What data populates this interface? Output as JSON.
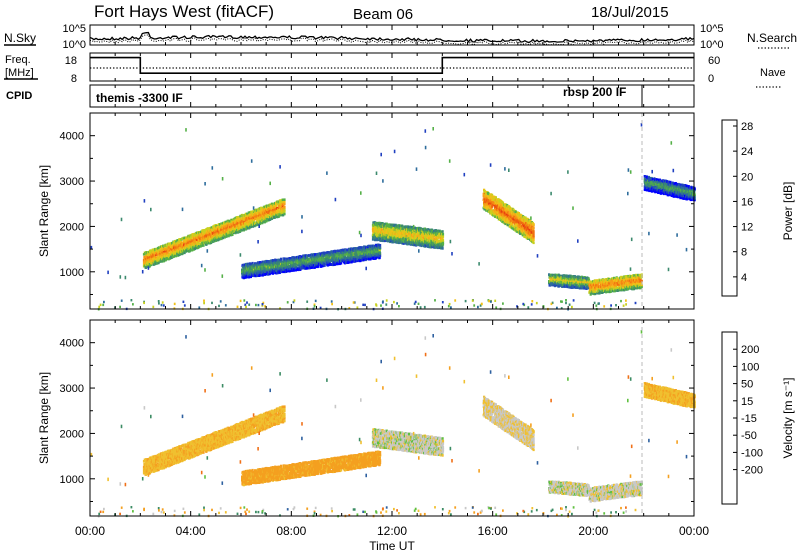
{
  "header": {
    "radar": "Fort Hays West (fitACF)",
    "beam": "Beam 06",
    "date": "18/Jul/2015"
  },
  "noise_panel": {
    "left_label": "N.Sky",
    "left_ticks": [
      "10^5",
      "10^0"
    ],
    "right_label": "N.Search",
    "right_ticks": [
      "10^5",
      "10^0"
    ]
  },
  "freq_panel": {
    "left_label_1": "Freq.",
    "left_label_2": "[MHz]",
    "left_ticks": [
      "18",
      "8"
    ],
    "right_label": "Nave",
    "right_ticks": [
      "60",
      "0"
    ],
    "freq_steps": [
      {
        "start_h": 0.0,
        "end_h": 2.0,
        "mhz": 17
      },
      {
        "start_h": 2.0,
        "end_h": 14.0,
        "mhz": 11
      },
      {
        "start_h": 14.0,
        "end_h": 22.0,
        "mhz": 17
      },
      {
        "start_h": 22.0,
        "end_h": 24.0,
        "mhz": 17
      }
    ],
    "nave": 30
  },
  "cpid": {
    "label": "CPID",
    "modes": [
      {
        "name": "themis -3300 IF",
        "start_h": 0.0
      },
      {
        "name": "rbsp 200 IF",
        "start_h": 22.0
      }
    ],
    "divider_h": 22.0
  },
  "time_axis": {
    "ticks": [
      "00:00",
      "04:00",
      "08:00",
      "12:00",
      "16:00",
      "20:00",
      "00:00"
    ],
    "label": "Time UT",
    "range_h": [
      0,
      24
    ]
  },
  "range_axis": {
    "label": "Slant Range [km]",
    "ticks": [
      "1000",
      "2000",
      "3000",
      "4000"
    ],
    "range_km": [
      180,
      4500
    ]
  },
  "power_colorbar": {
    "label": "Power [dB]",
    "ticks": [
      "4",
      "8",
      "12",
      "16",
      "20",
      "24",
      "28"
    ],
    "colors": [
      "#0000ff",
      "#2040c0",
      "#2e6d9c",
      "#3c8a6e",
      "#55b048",
      "#c8d020",
      "#f0c018",
      "#f89c18",
      "#f07010",
      "#e83c10",
      "#e01010"
    ]
  },
  "velocity_colorbar": {
    "label": "Velocity [m s⁻¹]",
    "ticks": [
      "200",
      "100",
      "50",
      "15",
      "-15",
      "-50",
      "-100",
      "-200"
    ],
    "colors": [
      "#2020c8",
      "#2e60a0",
      "#3c8c64",
      "#60c040",
      "#c8c8c8",
      "#f0c030",
      "#f4a020",
      "#f07018",
      "#e83818",
      "#e01010"
    ]
  },
  "chart_data": {
    "type": "heatmap",
    "x_unit": "hours UT",
    "y_unit": "km",
    "echo_bands": [
      {
        "start_h": 2.1,
        "end_h": 7.7,
        "r_start_km": 1300,
        "r_end_km": 2500,
        "thickness_km": 380,
        "power_db": 18,
        "velocity": -40
      },
      {
        "start_h": 6.0,
        "end_h": 11.5,
        "r_start_km": 1050,
        "r_end_km": 1500,
        "thickness_km": 300,
        "power_db": 8,
        "velocity": -70
      },
      {
        "start_h": 11.2,
        "end_h": 14.0,
        "r_start_km": 1950,
        "r_end_km": 1750,
        "thickness_km": 400,
        "power_db": 14,
        "velocity": 0
      },
      {
        "start_h": 15.6,
        "end_h": 17.6,
        "r_start_km": 2650,
        "r_end_km": 1900,
        "thickness_km": 450,
        "power_db": 20,
        "velocity": -10
      },
      {
        "start_h": 18.2,
        "end_h": 19.8,
        "r_start_km": 880,
        "r_end_km": 800,
        "thickness_km": 280,
        "power_db": 12,
        "velocity": 0
      },
      {
        "start_h": 19.8,
        "end_h": 21.9,
        "r_start_km": 700,
        "r_end_km": 850,
        "thickness_km": 320,
        "power_db": 18,
        "velocity": -5
      },
      {
        "start_h": 22.0,
        "end_h": 24.0,
        "r_start_km": 3000,
        "r_end_km": 2750,
        "thickness_km": 300,
        "power_db": 7,
        "velocity": -40
      }
    ]
  }
}
